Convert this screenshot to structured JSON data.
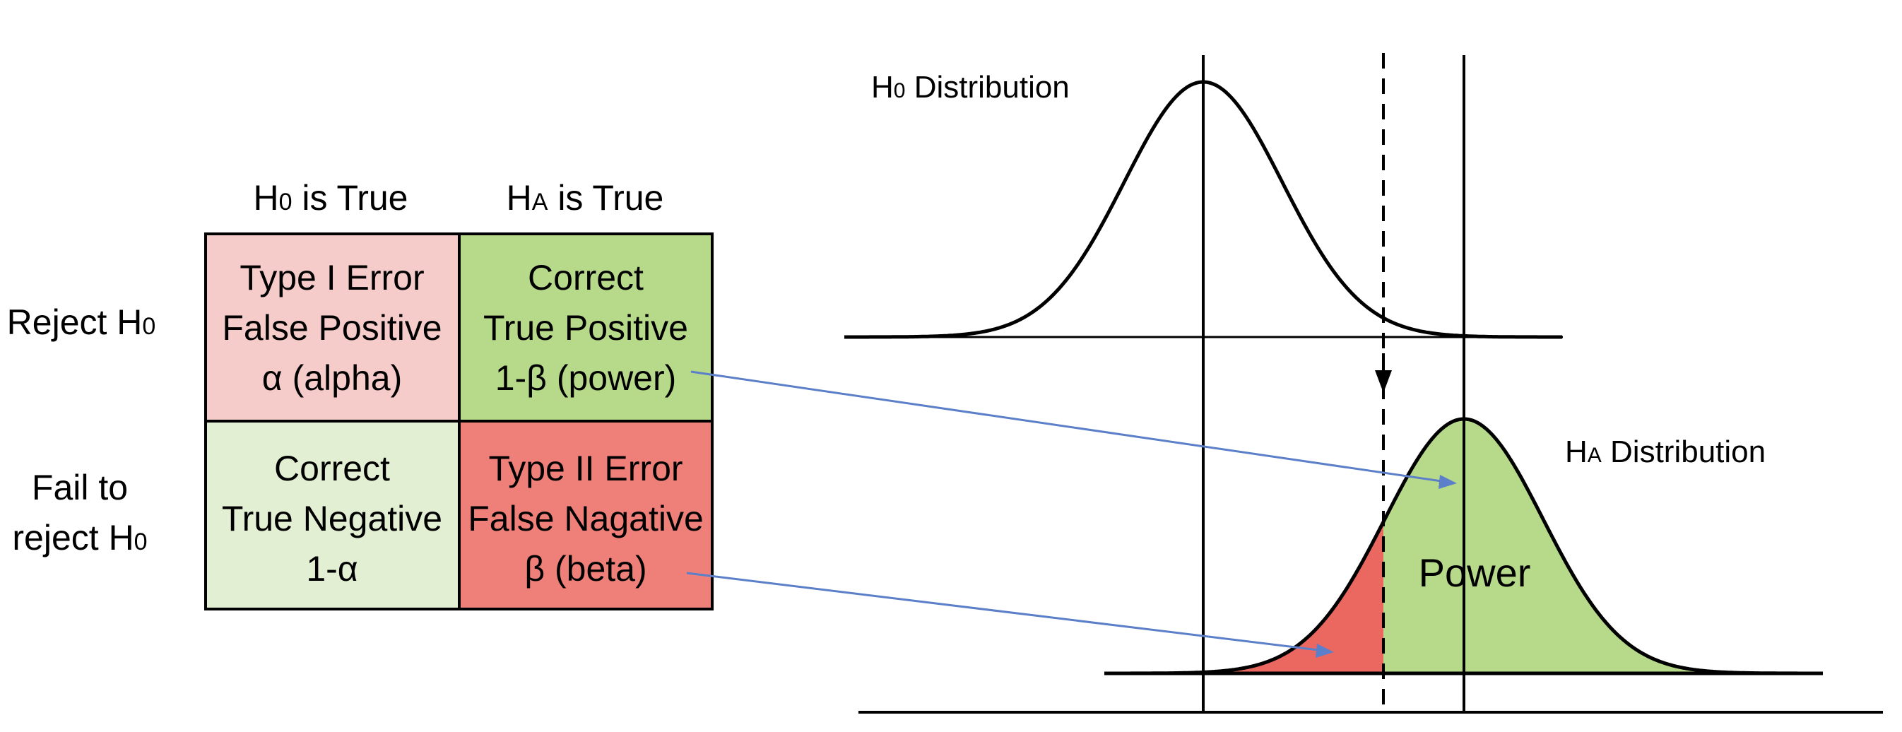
{
  "matrix": {
    "col_headers": [
      {
        "h": "H",
        "sub": "0",
        "rest": " is True"
      },
      {
        "h": "H",
        "sub": "A",
        "rest": " is True"
      }
    ],
    "row_headers": {
      "reject": {
        "line1": "Reject H",
        "sub": "0"
      },
      "fail": {
        "line1": "Fail to",
        "line2": "reject H",
        "sub": "0"
      }
    },
    "cells": [
      {
        "lines": [
          "Type I Error",
          "False Positive",
          "α (alpha)"
        ],
        "color": "#f6cccb"
      },
      {
        "lines": [
          "Correct",
          "True Positive",
          "1-β (power)"
        ],
        "color": "#b6d98a"
      },
      {
        "lines": [
          "Correct",
          "True Negative",
          "1-α"
        ],
        "color": "#e3efd2"
      },
      {
        "lines": [
          "Type II Error",
          "False Nagative",
          "β (beta)"
        ],
        "color": "#ee8079"
      }
    ]
  },
  "distributions": {
    "h0_label": {
      "h": "H",
      "sub": "0",
      "rest": " Distribution"
    },
    "ha_label": {
      "h": "H",
      "sub": "A",
      "rest": " Distribution"
    },
    "power_label": "Power"
  },
  "colors": {
    "power_fill": "#b6d98a",
    "beta_fill": "#ea685f",
    "arrow": "#5b7fc8",
    "line": "#000000"
  }
}
